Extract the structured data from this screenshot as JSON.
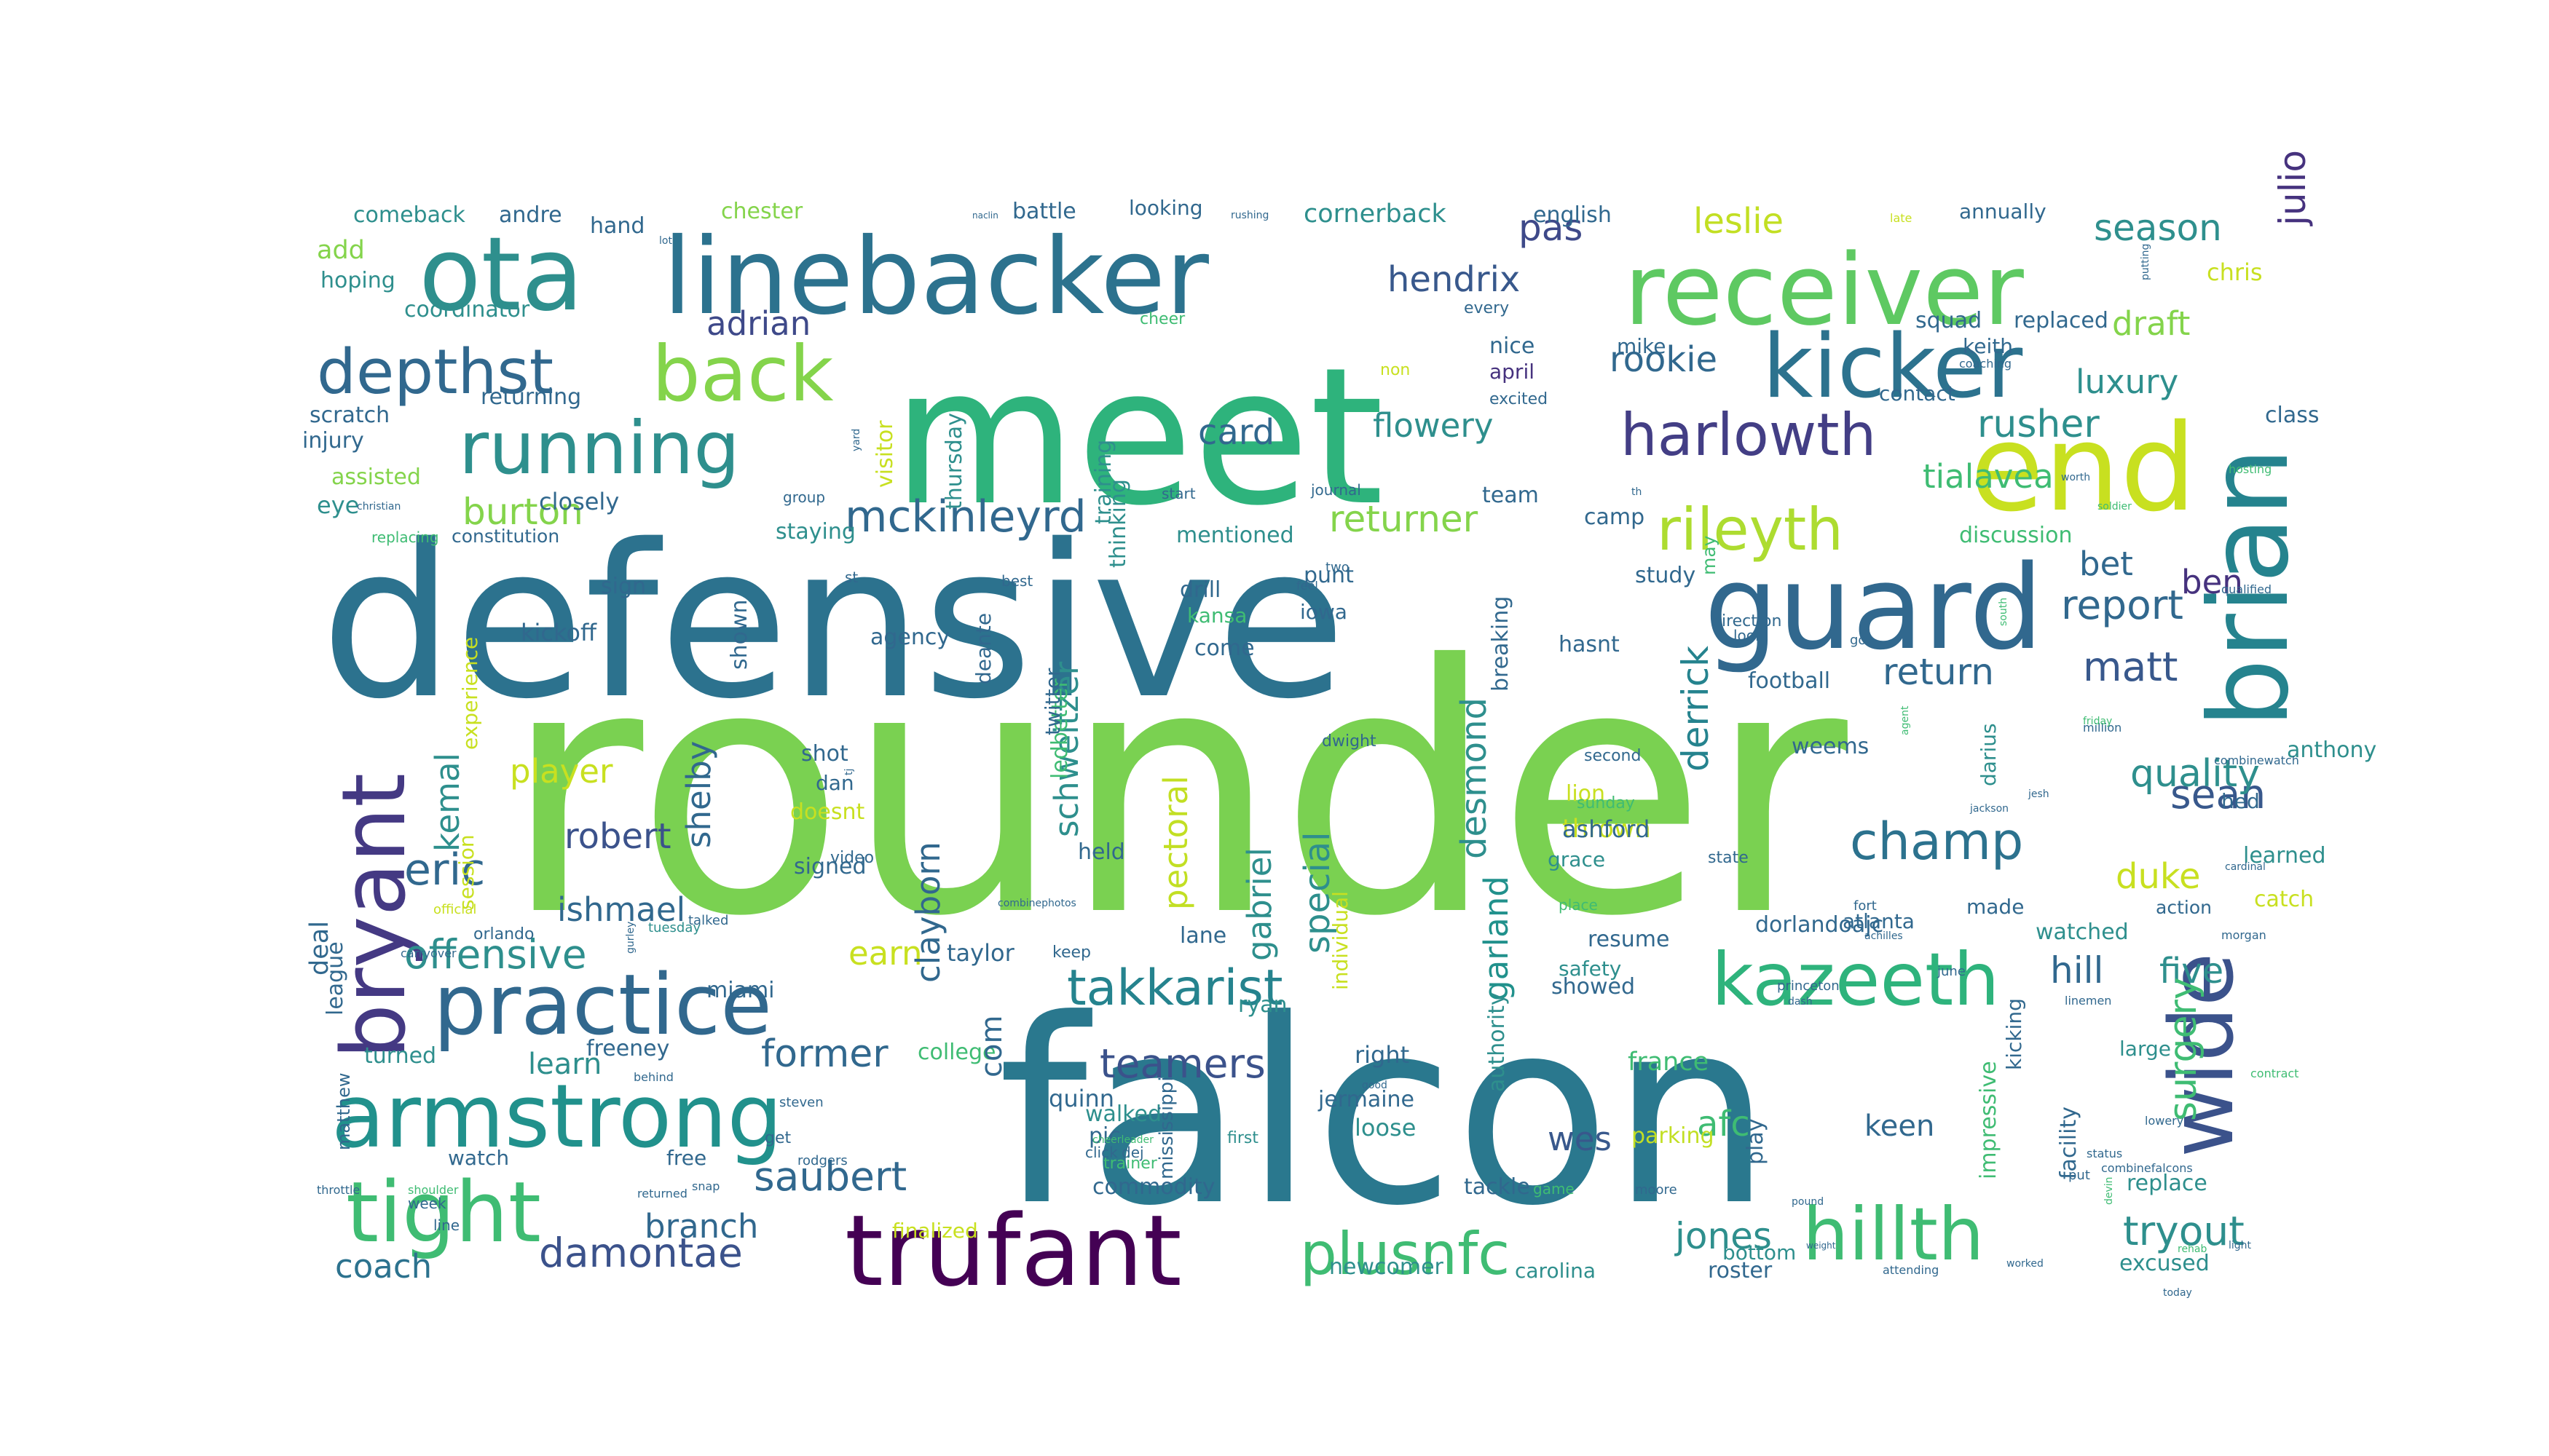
{
  "palette": [
    "#440154",
    "#3b528b",
    "#2c728e",
    "#21918c",
    "#28ae80",
    "#5ec962",
    "#addc30",
    "#fde725"
  ],
  "words": [
    {
      "text": "rounder",
      "color": "#7ad151"
    },
    {
      "text": "falcon",
      "color": "#2a788e"
    },
    {
      "text": "defensive",
      "color": "#2c728e"
    },
    {
      "text": "meet",
      "color": "#2eb37c"
    },
    {
      "text": "linebacker",
      "color": "#2c728e"
    },
    {
      "text": "ota",
      "color": "#2e8f8d"
    },
    {
      "text": "receiver",
      "color": "#5ec962"
    },
    {
      "text": "end",
      "color": "#c8e020"
    },
    {
      "text": "guard",
      "color": "#31688e"
    },
    {
      "text": "kicker",
      "color": "#2c728e"
    },
    {
      "text": "brian",
      "color": "#25838e"
    },
    {
      "text": "trufant",
      "color": "#440154"
    },
    {
      "text": "armstrong",
      "color": "#21918c"
    },
    {
      "text": "practice",
      "color": "#31688e"
    },
    {
      "text": "bryant",
      "color": "#443983"
    },
    {
      "text": "running",
      "color": "#2e8f8d"
    },
    {
      "text": "back",
      "color": "#84d44b"
    },
    {
      "text": "wide",
      "color": "#3b528b"
    },
    {
      "text": "kazeeth",
      "color": "#2eb37c"
    },
    {
      "text": "hillth",
      "color": "#3fbc73"
    },
    {
      "text": "plusnfc",
      "color": "#3fbc73"
    },
    {
      "text": "tight",
      "color": "#3fbc73"
    },
    {
      "text": "depthst",
      "color": "#31688e"
    },
    {
      "text": "harlowth",
      "color": "#433e85"
    },
    {
      "text": "rileyth",
      "color": "#addc30"
    },
    {
      "text": "champ",
      "color": "#2c728e"
    },
    {
      "text": "takkarist",
      "color": "#25838e"
    },
    {
      "text": "mckinleyrd",
      "color": "#31688e"
    },
    {
      "text": "offensive",
      "color": "#2e8f8d"
    },
    {
      "text": "saubert",
      "color": "#31688e"
    },
    {
      "text": "damontae",
      "color": "#3b528b"
    },
    {
      "text": "matt",
      "color": "#38588c"
    },
    {
      "text": "sean",
      "color": "#38588c"
    },
    {
      "text": "report",
      "color": "#31688e"
    },
    {
      "text": "quality",
      "color": "#2e8f8d"
    },
    {
      "text": "eric",
      "color": "#31688e"
    },
    {
      "text": "rusher",
      "color": "#2e8f8d"
    },
    {
      "text": "luxury",
      "color": "#2e8f8d"
    },
    {
      "text": "draft",
      "color": "#84d44b"
    },
    {
      "text": "season",
      "color": "#2e8f8d"
    },
    {
      "text": "julio",
      "color": "#46327e"
    },
    {
      "text": "pas",
      "color": "#3e4989"
    },
    {
      "text": "leslie",
      "color": "#c2df23"
    },
    {
      "text": "hendrix",
      "color": "#38588c"
    },
    {
      "text": "adrian",
      "color": "#3e4989"
    },
    {
      "text": "burton",
      "color": "#84d44b"
    },
    {
      "text": "returner",
      "color": "#84d44b"
    },
    {
      "text": "flowery",
      "color": "#2e8f8d"
    },
    {
      "text": "card",
      "color": "#31688e"
    },
    {
      "text": "rookie",
      "color": "#31688e"
    },
    {
      "text": "tialavea",
      "color": "#3fbc73"
    },
    {
      "text": "return",
      "color": "#31688e"
    },
    {
      "text": "ben",
      "color": "#46327e"
    },
    {
      "text": "bet",
      "color": "#31688e"
    },
    {
      "text": "derrick",
      "color": "#25838e"
    },
    {
      "text": "duke",
      "color": "#c8e020"
    },
    {
      "text": "five",
      "color": "#2e8f8d"
    },
    {
      "text": "hill",
      "color": "#31688e"
    },
    {
      "text": "surgery",
      "color": "#3fbc73"
    },
    {
      "text": "tryout",
      "color": "#2e8f8d"
    },
    {
      "text": "jones",
      "color": "#2e8f8d"
    },
    {
      "text": "afc",
      "color": "#3fbc73"
    },
    {
      "text": "keen",
      "color": "#31688e"
    },
    {
      "text": "teamers",
      "color": "#3b528b"
    },
    {
      "text": "former",
      "color": "#31688e"
    },
    {
      "text": "earn",
      "color": "#c8e020"
    },
    {
      "text": "branch",
      "color": "#31688e"
    },
    {
      "text": "coach",
      "color": "#2c728e"
    },
    {
      "text": "robert",
      "color": "#3b528b"
    },
    {
      "text": "ishmael",
      "color": "#31688e"
    },
    {
      "text": "player",
      "color": "#c8e020"
    },
    {
      "text": "schweitzer",
      "color": "#2e8f8d"
    },
    {
      "text": "clayborn",
      "color": "#31688e"
    },
    {
      "text": "gabriel",
      "color": "#2e8f8d"
    },
    {
      "text": "special",
      "color": "#2e8f8d"
    },
    {
      "text": "desmond",
      "color": "#2e8f8d"
    },
    {
      "text": "pectoral",
      "color": "#c2df23"
    },
    {
      "text": "garland",
      "color": "#21918c"
    },
    {
      "text": "wes",
      "color": "#38588c"
    },
    {
      "text": "kemal",
      "color": "#2e8f8d"
    },
    {
      "text": "shelby",
      "color": "#31688e"
    },
    {
      "text": "learn",
      "color": "#2e8f8d"
    },
    {
      "text": "comeback",
      "color": "#2e8f8d"
    },
    {
      "text": "add",
      "color": "#84d44b"
    },
    {
      "text": "hoping",
      "color": "#2e8f8d"
    },
    {
      "text": "coordinator",
      "color": "#2e8f8d"
    },
    {
      "text": "returning",
      "color": "#31688e"
    },
    {
      "text": "scratch",
      "color": "#31688e"
    },
    {
      "text": "injury",
      "color": "#31688e"
    },
    {
      "text": "assisted",
      "color": "#84d44b"
    },
    {
      "text": "eye",
      "color": "#2e8f8d"
    },
    {
      "text": "closely",
      "color": "#31688e"
    },
    {
      "text": "andre",
      "color": "#31688e"
    },
    {
      "text": "hand",
      "color": "#31688e"
    },
    {
      "text": "chester",
      "color": "#84d44b"
    },
    {
      "text": "battle",
      "color": "#31688e"
    },
    {
      "text": "looking",
      "color": "#31688e"
    },
    {
      "text": "cornerback",
      "color": "#2e8f8d"
    },
    {
      "text": "english",
      "color": "#31688e"
    },
    {
      "text": "annually",
      "color": "#31688e"
    },
    {
      "text": "chris",
      "color": "#c8e020"
    },
    {
      "text": "squad",
      "color": "#31688e"
    },
    {
      "text": "replaced",
      "color": "#31688e"
    },
    {
      "text": "keith",
      "color": "#31688e"
    },
    {
      "text": "contact",
      "color": "#31688e"
    },
    {
      "text": "class",
      "color": "#31688e"
    },
    {
      "text": "nice",
      "color": "#31688e"
    },
    {
      "text": "april",
      "color": "#46327e"
    },
    {
      "text": "mike",
      "color": "#31688e"
    },
    {
      "text": "team",
      "color": "#31688e"
    },
    {
      "text": "camp",
      "color": "#31688e"
    },
    {
      "text": "constitution",
      "color": "#31688e"
    },
    {
      "text": "staying",
      "color": "#2e8f8d"
    },
    {
      "text": "mentioned",
      "color": "#2e8f8d"
    },
    {
      "text": "discussion",
      "color": "#3fbc73"
    },
    {
      "text": "study",
      "color": "#31688e"
    },
    {
      "text": "drill",
      "color": "#31688e"
    },
    {
      "text": "kansa",
      "color": "#3fbc73"
    },
    {
      "text": "punt",
      "color": "#31688e"
    },
    {
      "text": "iowa",
      "color": "#31688e"
    },
    {
      "text": "come",
      "color": "#31688e"
    },
    {
      "text": "agency",
      "color": "#31688e"
    },
    {
      "text": "kickoff",
      "color": "#31688e"
    },
    {
      "text": "sign",
      "color": "#31688e"
    },
    {
      "text": "hasnt",
      "color": "#31688e"
    },
    {
      "text": "football",
      "color": "#31688e"
    },
    {
      "text": "weems",
      "color": "#31688e"
    },
    {
      "text": "shot",
      "color": "#31688e"
    },
    {
      "text": "dan",
      "color": "#31688e"
    },
    {
      "text": "doesnt",
      "color": "#c8e020"
    },
    {
      "text": "signed",
      "color": "#31688e"
    },
    {
      "text": "held",
      "color": "#31688e"
    },
    {
      "text": "lion",
      "color": "#c8e020"
    },
    {
      "text": "thrown",
      "color": "#c8e020"
    },
    {
      "text": "ashford",
      "color": "#31688e"
    },
    {
      "text": "grace",
      "color": "#2e8f8d"
    },
    {
      "text": "learned",
      "color": "#2e8f8d"
    },
    {
      "text": "catch",
      "color": "#c8e020"
    },
    {
      "text": "hed",
      "color": "#31688e"
    },
    {
      "text": "anthony",
      "color": "#2e8f8d"
    },
    {
      "text": "taylor",
      "color": "#31688e"
    },
    {
      "text": "lane",
      "color": "#31688e"
    },
    {
      "text": "miami",
      "color": "#31688e"
    },
    {
      "text": "dorlandoajc",
      "color": "#31688e"
    },
    {
      "text": "atlanta",
      "color": "#31688e"
    },
    {
      "text": "made",
      "color": "#31688e"
    },
    {
      "text": "action",
      "color": "#31688e"
    },
    {
      "text": "resume",
      "color": "#31688e"
    },
    {
      "text": "safety",
      "color": "#2e8f8d"
    },
    {
      "text": "showed",
      "color": "#31688e"
    },
    {
      "text": "watched",
      "color": "#2e8f8d"
    },
    {
      "text": "ryan",
      "color": "#2e8f8d"
    },
    {
      "text": "right",
      "color": "#31688e"
    },
    {
      "text": "jermaine",
      "color": "#31688e"
    },
    {
      "text": "college",
      "color": "#3fbc73"
    },
    {
      "text": "quinn",
      "color": "#31688e"
    },
    {
      "text": "walked",
      "color": "#2e8f8d"
    },
    {
      "text": "pic",
      "color": "#31688e"
    },
    {
      "text": "commodity",
      "color": "#31688e"
    },
    {
      "text": "finalized",
      "color": "#c8e020"
    },
    {
      "text": "loose",
      "color": "#2e8f8d"
    },
    {
      "text": "tackle",
      "color": "#31688e"
    },
    {
      "text": "newcomer",
      "color": "#2e8f8d"
    },
    {
      "text": "carolina",
      "color": "#2e8f8d"
    },
    {
      "text": "france",
      "color": "#3fbc73"
    },
    {
      "text": "parking",
      "color": "#c2df23"
    },
    {
      "text": "roster",
      "color": "#31688e"
    },
    {
      "text": "bottom",
      "color": "#2e8f8d"
    },
    {
      "text": "play",
      "color": "#31688e"
    },
    {
      "text": "excused",
      "color": "#2e8f8d"
    },
    {
      "text": "replace",
      "color": "#2e8f8d"
    },
    {
      "text": "large",
      "color": "#2e8f8d"
    },
    {
      "text": "facility",
      "color": "#31688e"
    },
    {
      "text": "impressive",
      "color": "#3fbc73"
    },
    {
      "text": "watch",
      "color": "#31688e"
    },
    {
      "text": "turned",
      "color": "#2e8f8d"
    },
    {
      "text": "free",
      "color": "#31688e"
    },
    {
      "text": "league",
      "color": "#31688e"
    },
    {
      "text": "session",
      "color": "#c8e020"
    },
    {
      "text": "experience",
      "color": "#c8e020"
    },
    {
      "text": "replacing",
      "color": "#3fbc73"
    },
    {
      "text": "visitor",
      "color": "#c8e020"
    },
    {
      "text": "thursday",
      "color": "#2e8f8d"
    },
    {
      "text": "training",
      "color": "#2e8f8d"
    },
    {
      "text": "thinking",
      "color": "#2e8f8d"
    },
    {
      "text": "ledbetter",
      "color": "#3fbc73"
    },
    {
      "text": "twitter",
      "color": "#31688e"
    },
    {
      "text": "deante",
      "color": "#31688e"
    },
    {
      "text": "shown",
      "color": "#31688e"
    },
    {
      "text": "breaking",
      "color": "#31688e"
    },
    {
      "text": "authority",
      "color": "#2e8f8d"
    },
    {
      "text": "individual",
      "color": "#c8e020"
    },
    {
      "text": "darius",
      "color": "#2e8f8d"
    },
    {
      "text": "kicking",
      "color": "#31688e"
    },
    {
      "text": "non",
      "color": "#c8e020"
    },
    {
      "text": "excited",
      "color": "#31688e"
    },
    {
      "text": "cheer",
      "color": "#3fbc73"
    },
    {
      "text": "every",
      "color": "#31688e"
    },
    {
      "text": "group",
      "color": "#31688e"
    },
    {
      "text": "start",
      "color": "#31688e"
    },
    {
      "text": "journal",
      "color": "#31688e"
    },
    {
      "text": "best",
      "color": "#31688e"
    },
    {
      "text": "two",
      "color": "#31688e"
    },
    {
      "text": "feel",
      "color": "#31688e"
    },
    {
      "text": "st",
      "color": "#31688e"
    },
    {
      "text": "may",
      "color": "#3fbc73"
    },
    {
      "text": "look",
      "color": "#31688e"
    },
    {
      "text": "direction",
      "color": "#31688e"
    },
    {
      "text": "go",
      "color": "#31688e"
    },
    {
      "text": "dwight",
      "color": "#31688e"
    },
    {
      "text": "second",
      "color": "#31688e"
    },
    {
      "text": "sunday",
      "color": "#3fbc73"
    },
    {
      "text": "state",
      "color": "#31688e"
    },
    {
      "text": "place",
      "color": "#3fbc73"
    },
    {
      "text": "video",
      "color": "#31688e"
    },
    {
      "text": "orlando",
      "color": "#31688e"
    },
    {
      "text": "trainer",
      "color": "#3fbc73"
    },
    {
      "text": "click",
      "color": "#31688e"
    },
    {
      "text": "keep",
      "color": "#31688e"
    },
    {
      "text": "com",
      "color": "#31688e"
    },
    {
      "text": "get",
      "color": "#31688e"
    },
    {
      "text": "first",
      "color": "#2e8f8d"
    },
    {
      "text": "game",
      "color": "#3fbc73"
    },
    {
      "text": "moore",
      "color": "#31688e"
    },
    {
      "text": "attending",
      "color": "#31688e"
    },
    {
      "text": "put",
      "color": "#31688e"
    },
    {
      "text": "princeton",
      "color": "#31688e"
    },
    {
      "text": "june",
      "color": "#31688e"
    },
    {
      "text": "fort",
      "color": "#31688e"
    },
    {
      "text": "week",
      "color": "#31688e"
    },
    {
      "text": "line",
      "color": "#31688e"
    },
    {
      "text": "rodgers",
      "color": "#31688e"
    },
    {
      "text": "shoulder",
      "color": "#3fbc73"
    },
    {
      "text": "snap",
      "color": "#31688e"
    },
    {
      "text": "returned",
      "color": "#31688e"
    },
    {
      "text": "throttle",
      "color": "#31688e"
    },
    {
      "text": "matthew",
      "color": "#31688e"
    },
    {
      "text": "deal",
      "color": "#31688e"
    },
    {
      "text": "official",
      "color": "#c8e020"
    },
    {
      "text": "tuesday",
      "color": "#2e8f8d"
    },
    {
      "text": "talked",
      "color": "#31688e"
    },
    {
      "text": "freeney",
      "color": "#31688e"
    },
    {
      "text": "dej",
      "color": "#31688e"
    },
    {
      "text": "cheerleader",
      "color": "#3fbc73"
    },
    {
      "text": "mississippi",
      "color": "#31688e"
    },
    {
      "text": "steven",
      "color": "#31688e"
    },
    {
      "text": "behind",
      "color": "#31688e"
    },
    {
      "text": "gurley",
      "color": "#31688e"
    },
    {
      "text": "combinephotos",
      "color": "#31688e"
    },
    {
      "text": "carryover",
      "color": "#31688e"
    },
    {
      "text": "good",
      "color": "#31688e"
    },
    {
      "text": "dash",
      "color": "#31688e"
    },
    {
      "text": "linemen",
      "color": "#31688e"
    },
    {
      "text": "status",
      "color": "#31688e"
    },
    {
      "text": "achilles",
      "color": "#31688e"
    },
    {
      "text": "lowery",
      "color": "#31688e"
    },
    {
      "text": "combinefalcons",
      "color": "#31688e"
    },
    {
      "text": "devin",
      "color": "#3fbc73"
    },
    {
      "text": "rehab",
      "color": "#3fbc73"
    },
    {
      "text": "pound",
      "color": "#31688e"
    },
    {
      "text": "weight",
      "color": "#31688e"
    },
    {
      "text": "worked",
      "color": "#31688e"
    },
    {
      "text": "today",
      "color": "#31688e"
    },
    {
      "text": "light",
      "color": "#31688e"
    },
    {
      "text": "contract",
      "color": "#3fbc73"
    },
    {
      "text": "morgan",
      "color": "#31688e"
    },
    {
      "text": "cardinal",
      "color": "#31688e"
    },
    {
      "text": "combinewatch",
      "color": "#31688e"
    },
    {
      "text": "million",
      "color": "#31688e"
    },
    {
      "text": "friday",
      "color": "#3fbc73"
    },
    {
      "text": "jackson",
      "color": "#31688e"
    },
    {
      "text": "south",
      "color": "#3fbc73"
    },
    {
      "text": "jesh",
      "color": "#31688e"
    },
    {
      "text": "agent",
      "color": "#3fbc73"
    },
    {
      "text": "tj",
      "color": "#31688e"
    },
    {
      "text": "qualified",
      "color": "#31688e"
    },
    {
      "text": "soldier",
      "color": "#3fbc73"
    },
    {
      "text": "hosting",
      "color": "#3fbc73"
    },
    {
      "text": "worth",
      "color": "#31688e"
    },
    {
      "text": "th",
      "color": "#31688e"
    },
    {
      "text": "coaching",
      "color": "#31688e"
    },
    {
      "text": "putting",
      "color": "#31688e"
    },
    {
      "text": "late",
      "color": "#c8e020"
    },
    {
      "text": "rushing",
      "color": "#31688e"
    },
    {
      "text": "naclin",
      "color": "#31688e"
    },
    {
      "text": "lot",
      "color": "#31688e"
    },
    {
      "text": "christian",
      "color": "#31688e"
    },
    {
      "text": "yard",
      "color": "#31688e"
    }
  ]
}
